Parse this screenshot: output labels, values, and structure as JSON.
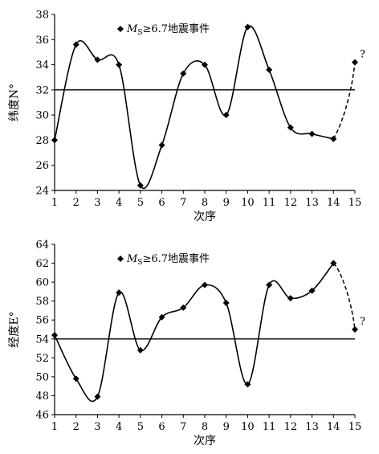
{
  "chart_data": [
    {
      "type": "line",
      "legend": {
        "marker_text": "M",
        "subscript": "S",
        "rest": "≥6.7地震事件",
        "placement": "top-left"
      },
      "xlabel": "次序",
      "ylabel": "纬度N°",
      "x": [
        1,
        2,
        3,
        4,
        5,
        6,
        7,
        8,
        9,
        10,
        11,
        12,
        13,
        14
      ],
      "values": [
        28.0,
        35.6,
        34.4,
        34.0,
        24.4,
        27.6,
        33.3,
        34.0,
        30.0,
        37.0,
        33.6,
        29.0,
        28.5,
        28.1
      ],
      "projection": {
        "x": [
          14,
          15
        ],
        "values": [
          28.1,
          34.2
        ],
        "label": "?"
      },
      "reference_line": 32,
      "xticks": [
        "1",
        "2",
        "3",
        "4",
        "5",
        "6",
        "7",
        "8",
        "9",
        "10",
        "11",
        "12",
        "13",
        "14",
        "15"
      ],
      "yticks": [
        "24",
        "26",
        "28",
        "30",
        "32",
        "34",
        "36",
        "38"
      ],
      "xlim": [
        1,
        15
      ],
      "ylim": [
        24,
        38
      ]
    },
    {
      "type": "line",
      "legend": {
        "marker_text": "M",
        "subscript": "S",
        "rest": "≥6.7地震事件",
        "placement": "top-left"
      },
      "xlabel": "次序",
      "ylabel": "经度E°",
      "x": [
        1,
        2,
        3,
        4,
        5,
        6,
        7,
        8,
        9,
        10,
        11,
        12,
        13,
        14
      ],
      "values": [
        54.4,
        49.8,
        47.9,
        58.9,
        52.8,
        56.3,
        57.3,
        59.7,
        57.8,
        49.2,
        59.7,
        58.3,
        59.1,
        62.0
      ],
      "projection": {
        "x": [
          14,
          15
        ],
        "values": [
          62.0,
          55.0
        ],
        "label": "?"
      },
      "reference_line": 54,
      "xticks": [
        "1",
        "2",
        "3",
        "4",
        "5",
        "6",
        "7",
        "8",
        "9",
        "10",
        "11",
        "12",
        "13",
        "14",
        "15"
      ],
      "yticks": [
        "46",
        "48",
        "50",
        "52",
        "54",
        "56",
        "58",
        "60",
        "62",
        "64"
      ],
      "xlim": [
        1,
        15
      ],
      "ylim": [
        46,
        64
      ]
    }
  ]
}
